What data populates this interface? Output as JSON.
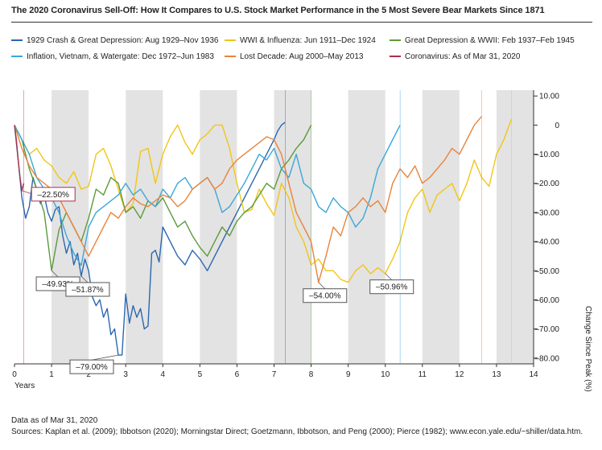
{
  "title": "The 2020 Coronavirus Sell-Off: How It Compares to U.S. Stock Market Performance in the 5 Most Severe Bear Markets Since 1871",
  "footer": {
    "line1": "Data as of Mar 31, 2020",
    "line2": "Sources: Kaplan et al. (2009); Ibbotson (2020); Morningstar Direct; Goetzmann, Ibbotson, and Peng (2000); Pierce (1982); www.econ.yale.edu/~shiller/data.htm."
  },
  "chart_data": {
    "type": "line",
    "title": "The 2020 Coronavirus Sell-Off: How It Compares to U.S. Stock Market Performance in the 5 Most Severe Bear Markets Since 1871",
    "xlabel": "Years",
    "ylabel": "Change Since Peak (%)",
    "xlim": [
      0,
      14
    ],
    "ylim": [
      -82,
      12
    ],
    "x_ticks": [
      0,
      1,
      2,
      3,
      4,
      5,
      6,
      7,
      8,
      9,
      10,
      11,
      12,
      13,
      14
    ],
    "y_ticks": [
      10,
      0,
      -10,
      -20,
      -30,
      -40,
      -50,
      -60,
      -70,
      -80
    ],
    "y_tick_labels": [
      "10.00",
      "0",
      "–10.00",
      "–20.00",
      "–30.00",
      "–40.00",
      "–50.00",
      "–60.00",
      "–70.00",
      "–80.00"
    ],
    "grid": false,
    "legend_position": "top",
    "shaded_bands": [
      [
        1,
        2
      ],
      [
        3,
        4
      ],
      [
        5,
        6
      ],
      [
        7,
        8
      ],
      [
        9,
        10
      ],
      [
        11,
        12
      ],
      [
        13,
        14
      ]
    ],
    "series": [
      {
        "name": "1929 Crash & Great Depression: Aug 1929–Nov 1936",
        "color": "#2b67b1",
        "x": [
          0,
          0.1,
          0.2,
          0.3,
          0.4,
          0.5,
          0.6,
          0.7,
          0.8,
          0.9,
          1.0,
          1.1,
          1.2,
          1.3,
          1.4,
          1.5,
          1.6,
          1.7,
          1.8,
          1.9,
          2.0,
          2.1,
          2.2,
          2.3,
          2.4,
          2.5,
          2.6,
          2.7,
          2.8,
          2.9,
          3.0,
          3.1,
          3.2,
          3.3,
          3.4,
          3.5,
          3.6,
          3.7,
          3.8,
          3.9,
          4.0,
          4.2,
          4.4,
          4.6,
          4.8,
          5.0,
          5.2,
          5.4,
          5.6,
          5.8,
          6.0,
          6.2,
          6.4,
          6.6,
          6.8,
          7.0,
          7.1,
          7.2,
          7.3
        ],
        "values": [
          0,
          -12,
          -25,
          -32,
          -28,
          -18,
          -22,
          -27,
          -24,
          -30,
          -33,
          -29,
          -28,
          -38,
          -44,
          -40,
          -48,
          -44,
          -51.87,
          -46,
          -50,
          -59,
          -62,
          -60,
          -66,
          -63,
          -72,
          -70,
          -79,
          -79,
          -58,
          -68,
          -62,
          -66,
          -63,
          -70,
          -69,
          -44,
          -43,
          -47,
          -35,
          -40,
          -45,
          -48,
          -43,
          -46,
          -50,
          -45,
          -40,
          -35,
          -30,
          -25,
          -20,
          -15,
          -10,
          -5,
          -2,
          0,
          1
        ]
      },
      {
        "name": "WWI & Influenza: Jun 1911–Dec 1924",
        "color": "#f2c518",
        "x": [
          0,
          0.2,
          0.4,
          0.6,
          0.8,
          1.0,
          1.2,
          1.4,
          1.6,
          1.8,
          2.0,
          2.2,
          2.4,
          2.6,
          2.8,
          3.0,
          3.2,
          3.4,
          3.6,
          3.8,
          4.0,
          4.2,
          4.4,
          4.6,
          4.8,
          5.0,
          5.2,
          5.4,
          5.6,
          5.8,
          6.0,
          6.2,
          6.4,
          6.6,
          6.8,
          7.0,
          7.2,
          7.4,
          7.6,
          7.8,
          8.0,
          8.2,
          8.4,
          8.6,
          8.8,
          9.0,
          9.2,
          9.4,
          9.6,
          9.8,
          10.0,
          10.2,
          10.4,
          10.6,
          10.8,
          11.0,
          11.2,
          11.4,
          11.6,
          11.8,
          12.0,
          12.2,
          12.4,
          12.6,
          12.8,
          13.0,
          13.2,
          13.4
        ],
        "values": [
          0,
          -5,
          -10,
          -8,
          -12,
          -14,
          -18,
          -20,
          -16,
          -22,
          -21,
          -10,
          -8,
          -14,
          -22,
          -30,
          -27,
          -9,
          -8,
          -20,
          -10,
          -4,
          0,
          -6,
          -10,
          -5,
          -3,
          0,
          0,
          -8,
          -20,
          -30,
          -29,
          -22,
          -27,
          -31,
          -20,
          -25,
          -35,
          -40,
          -48,
          -46,
          -50,
          -50,
          -53,
          -54,
          -50,
          -48,
          -51,
          -49,
          -50.96,
          -46,
          -40,
          -30,
          -25,
          -22,
          -30,
          -24,
          -22,
          -20,
          -26,
          -20,
          -12,
          -18,
          -21,
          -10,
          -5,
          2
        ]
      },
      {
        "name": "Great Depression & WWII: Feb 1937–Feb 1945",
        "color": "#5c9a3c",
        "x": [
          0,
          0.2,
          0.4,
          0.6,
          0.8,
          1.0,
          1.2,
          1.4,
          1.6,
          1.8,
          2.0,
          2.2,
          2.4,
          2.6,
          2.8,
          3.0,
          3.2,
          3.4,
          3.6,
          3.8,
          4.0,
          4.2,
          4.4,
          4.6,
          4.8,
          5.0,
          5.2,
          5.4,
          5.6,
          5.8,
          6.0,
          6.2,
          6.4,
          6.6,
          6.8,
          7.0,
          7.2,
          7.4,
          7.6,
          7.8,
          8.0
        ],
        "values": [
          0,
          -5,
          -15,
          -22,
          -30,
          -49.93,
          -36,
          -30,
          -35,
          -40,
          -32,
          -22,
          -24,
          -18,
          -20,
          -30,
          -28,
          -32,
          -26,
          -28,
          -25,
          -30,
          -35,
          -33,
          -38,
          -42,
          -45,
          -40,
          -35,
          -38,
          -33,
          -30,
          -28,
          -24,
          -20,
          -22,
          -15,
          -12,
          -8,
          -5,
          0
        ]
      },
      {
        "name": "Inflation, Vietnam, & Watergate: Dec 1972–Jun 1983",
        "color": "#3aa8d8",
        "x": [
          0,
          0.2,
          0.4,
          0.6,
          0.8,
          1.0,
          1.2,
          1.4,
          1.6,
          1.8,
          2.0,
          2.2,
          2.4,
          2.6,
          2.8,
          3.0,
          3.2,
          3.4,
          3.6,
          3.8,
          4.0,
          4.2,
          4.4,
          4.6,
          4.8,
          5.0,
          5.2,
          5.4,
          5.6,
          5.8,
          6.0,
          6.2,
          6.4,
          6.6,
          6.8,
          7.0,
          7.2,
          7.4,
          7.6,
          7.8,
          8.0,
          8.2,
          8.4,
          8.6,
          8.8,
          9.0,
          9.2,
          9.4,
          9.6,
          9.8,
          10.0,
          10.2,
          10.4
        ],
        "values": [
          0,
          -5,
          -10,
          -18,
          -22,
          -25,
          -30,
          -38,
          -44,
          -48.2,
          -35,
          -30,
          -28,
          -26,
          -24,
          -20,
          -24,
          -22,
          -26,
          -28,
          -22,
          -25,
          -20,
          -18,
          -22,
          -20,
          -18,
          -22,
          -30,
          -28,
          -24,
          -20,
          -15,
          -10,
          -12,
          -8,
          -15,
          -18,
          -10,
          -20,
          -22,
          -28,
          -30,
          -25,
          -28,
          -30,
          -35,
          -32,
          -25,
          -15,
          -10,
          -5,
          0
        ]
      },
      {
        "name": "Lost Decade: Aug 2000–May 2013",
        "color": "#e8843c",
        "x": [
          0,
          0.2,
          0.4,
          0.6,
          0.8,
          1.0,
          1.2,
          1.4,
          1.6,
          1.8,
          2.0,
          2.2,
          2.4,
          2.6,
          2.8,
          3.0,
          3.2,
          3.4,
          3.6,
          3.8,
          4.0,
          4.2,
          4.4,
          4.6,
          4.8,
          5.0,
          5.2,
          5.4,
          5.6,
          5.8,
          6.0,
          6.2,
          6.4,
          6.6,
          6.8,
          7.0,
          7.2,
          7.4,
          7.6,
          7.8,
          8.0,
          8.2,
          8.4,
          8.6,
          8.8,
          9.0,
          9.2,
          9.4,
          9.6,
          9.8,
          10.0,
          10.2,
          10.4,
          10.6,
          10.8,
          11.0,
          11.2,
          11.4,
          11.6,
          11.8,
          12.0,
          12.2,
          12.4,
          12.6
        ],
        "values": [
          0,
          -8,
          -14,
          -18,
          -20,
          -22,
          -25,
          -30,
          -35,
          -40,
          -45,
          -40,
          -35,
          -30,
          -32,
          -28,
          -25,
          -27,
          -28,
          -26,
          -24,
          -25,
          -28,
          -26,
          -22,
          -20,
          -18,
          -22,
          -20,
          -15,
          -12,
          -10,
          -8,
          -6,
          -4,
          -5,
          -10,
          -20,
          -30,
          -35,
          -40,
          -54,
          -45,
          -35,
          -38,
          -30,
          -28,
          -25,
          -28,
          -26,
          -30,
          -20,
          -15,
          -18,
          -14,
          -20,
          -18,
          -15,
          -12,
          -8,
          -10,
          -5,
          0,
          3
        ]
      },
      {
        "name": "Coronavirus: As of Mar 31, 2020",
        "color": "#a8324c",
        "x": [
          0,
          0.05,
          0.1,
          0.15,
          0.2,
          0.25
        ],
        "values": [
          0,
          -5,
          -12,
          -18,
          -22.5,
          -20
        ]
      }
    ],
    "annotations": [
      {
        "text": "–22.50%",
        "x": 0.2,
        "y": -22.5,
        "color": "#a8324c"
      },
      {
        "text": "–49.93%",
        "x": 1.0,
        "y": -49.93,
        "color": "#555555"
      },
      {
        "text": "–51.87%",
        "x": 1.8,
        "y": -51.87,
        "color": "#555555"
      },
      {
        "text": "–79.00%",
        "x": 2.8,
        "y": -79,
        "color": "#555555"
      },
      {
        "text": "–54.00%",
        "x": 8.2,
        "y": -54,
        "color": "#555555"
      },
      {
        "text": "–50.96%",
        "x": 10.0,
        "y": -50.96,
        "color": "#555555"
      }
    ]
  }
}
